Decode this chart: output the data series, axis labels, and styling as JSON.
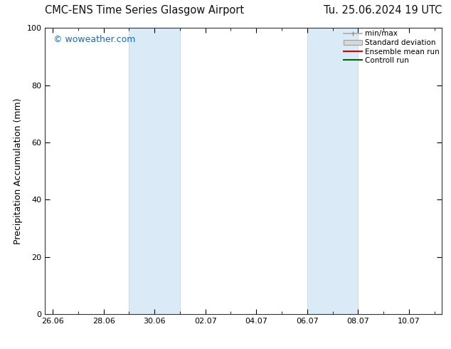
{
  "title_left": "CMC-ENS Time Series Glasgow Airport",
  "title_right": "Tu. 25.06.2024 19 UTC",
  "ylabel": "Precipitation Accumulation (mm)",
  "watermark": "© woweather.com",
  "watermark_color": "#1a6abf",
  "ylim": [
    0,
    100
  ],
  "yticks": [
    0,
    20,
    40,
    60,
    80,
    100
  ],
  "x_tick_labels": [
    "26.06",
    "28.06",
    "30.06",
    "02.07",
    "04.07",
    "06.07",
    "08.07",
    "10.07"
  ],
  "x_tick_positions_days": [
    0,
    2,
    4,
    6,
    8,
    10,
    12,
    14
  ],
  "x_lim": [
    -0.3,
    15.3
  ],
  "shaded_regions": [
    {
      "start_days": 3.0,
      "end_days": 5.0
    },
    {
      "start_days": 10.0,
      "end_days": 12.0
    }
  ],
  "shade_color": "#daeaf7",
  "shade_edge_color": "#b8d4eb",
  "background_color": "#ffffff",
  "title_fontsize": 10.5,
  "label_fontsize": 9,
  "tick_fontsize": 8,
  "legend_fontsize": 7.5,
  "watermark_fontsize": 9
}
